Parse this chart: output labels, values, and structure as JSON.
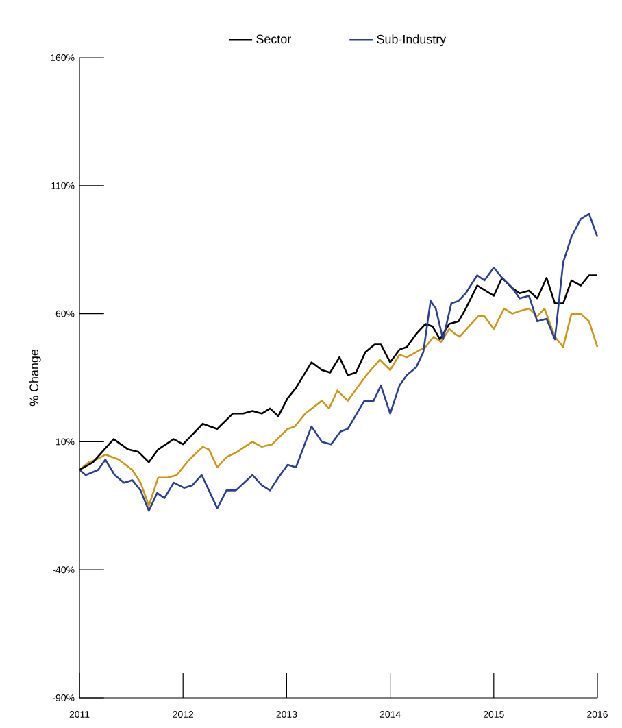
{
  "chart_data": {
    "type": "line",
    "ylabel": "% Change",
    "xlim": [
      2011,
      2016
    ],
    "ylim": [
      -90,
      160
    ],
    "xticks": [
      2011,
      2012,
      2013,
      2014,
      2015,
      2016
    ],
    "yticks": [
      {
        "value": -90,
        "label": "-90%"
      },
      {
        "value": -40,
        "label": "-40%"
      },
      {
        "value": 10,
        "label": "10%"
      },
      {
        "value": 60,
        "label": "60%"
      },
      {
        "value": 110,
        "label": "110%"
      },
      {
        "value": 160,
        "label": "160%"
      }
    ],
    "legend": "top",
    "grid": false,
    "marker": "none",
    "line_style": "solid",
    "series": [
      {
        "color": "#c9981a",
        "x": [
          2011.0,
          2011.09,
          2011.16,
          2011.25,
          2011.38,
          2011.51,
          2011.59,
          2011.67,
          2011.76,
          2011.85,
          2011.94,
          2012.06,
          2012.19,
          2012.25,
          2012.33,
          2012.42,
          2012.52,
          2012.67,
          2012.76,
          2012.86,
          2013.01,
          2013.08,
          2013.18,
          2013.34,
          2013.41,
          2013.49,
          2013.59,
          2013.77,
          2013.9,
          2014.0,
          2014.09,
          2014.16,
          2014.34,
          2014.42,
          2014.49,
          2014.57,
          2014.63,
          2014.67,
          2014.85,
          2014.91,
          2015.0,
          2015.1,
          2015.18,
          2015.25,
          2015.34,
          2015.42,
          2015.49,
          2015.59,
          2015.67,
          2015.75,
          2015.84,
          2015.92,
          2016.0
        ],
        "values": [
          -1,
          2,
          3,
          5,
          3,
          -1,
          -6,
          -15,
          -4,
          -4,
          -3,
          3,
          8,
          7,
          0,
          4,
          6,
          10,
          8,
          9,
          15,
          16,
          21,
          26,
          23,
          30,
          26,
          36,
          42,
          38,
          44,
          43,
          47,
          51,
          49,
          54,
          52,
          51,
          59,
          59,
          54,
          62,
          60,
          61,
          62,
          59,
          62,
          51,
          47,
          60,
          60,
          57,
          47
        ]
      },
      {
        "name": "Sector",
        "color": "#000000",
        "x": [
          2011.0,
          2011.13,
          2011.24,
          2011.33,
          2011.47,
          2011.57,
          2011.67,
          2011.76,
          2011.91,
          2012.0,
          2012.19,
          2012.33,
          2012.48,
          2012.58,
          2012.67,
          2012.76,
          2012.84,
          2012.92,
          2013.01,
          2013.09,
          2013.24,
          2013.34,
          2013.42,
          2013.51,
          2013.59,
          2013.67,
          2013.76,
          2013.85,
          2013.91,
          2014.0,
          2014.09,
          2014.16,
          2014.25,
          2014.34,
          2014.41,
          2014.48,
          2014.57,
          2014.66,
          2014.73,
          2014.84,
          2015.0,
          2015.08,
          2015.18,
          2015.25,
          2015.34,
          2015.42,
          2015.51,
          2015.59,
          2015.67,
          2015.75,
          2015.84,
          2015.92,
          2016.0
        ],
        "values": [
          -1,
          2,
          7,
          11,
          7,
          6,
          2,
          7,
          11,
          9,
          17,
          15,
          21,
          21,
          22,
          21,
          23,
          20,
          27,
          31,
          41,
          38,
          37,
          43,
          36,
          37,
          45,
          48,
          48,
          41,
          46,
          47,
          52,
          56,
          55,
          50,
          56,
          57,
          62,
          71,
          67,
          74,
          70,
          68,
          69,
          66,
          74,
          64,
          64,
          73,
          71,
          75,
          75
        ]
      },
      {
        "name": "Sub-Industry",
        "color": "#2a3f94",
        "x": [
          2011.0,
          2011.06,
          2011.18,
          2011.25,
          2011.34,
          2011.43,
          2011.51,
          2011.59,
          2011.67,
          2011.75,
          2011.82,
          2011.91,
          2012.01,
          2012.09,
          2012.18,
          2012.25,
          2012.33,
          2012.42,
          2012.51,
          2012.67,
          2012.76,
          2012.84,
          2012.92,
          2013.01,
          2013.09,
          2013.24,
          2013.34,
          2013.43,
          2013.52,
          2013.59,
          2013.75,
          2013.84,
          2013.91,
          2014.0,
          2014.09,
          2014.16,
          2014.25,
          2014.32,
          2014.39,
          2014.44,
          2014.51,
          2014.59,
          2014.66,
          2014.73,
          2014.84,
          2014.91,
          2015.0,
          2015.08,
          2015.18,
          2015.25,
          2015.34,
          2015.42,
          2015.51,
          2015.59,
          2015.67,
          2015.75,
          2015.84,
          2015.92,
          2016.0
        ],
        "values": [
          -1,
          -3,
          -1,
          3,
          -3,
          -6,
          -5,
          -9,
          -17,
          -10,
          -12,
          -6,
          -8,
          -7,
          -3,
          -9,
          -16,
          -9,
          -9,
          -3,
          -7,
          -9,
          -4,
          1,
          0,
          16,
          10,
          9,
          14,
          15,
          26,
          26,
          32,
          21,
          32,
          36,
          39,
          45,
          65,
          62,
          50,
          64,
          65,
          68,
          75,
          73,
          78,
          74,
          70,
          66,
          67,
          57,
          58,
          50,
          80,
          90,
          97,
          99,
          90
        ]
      }
    ]
  }
}
